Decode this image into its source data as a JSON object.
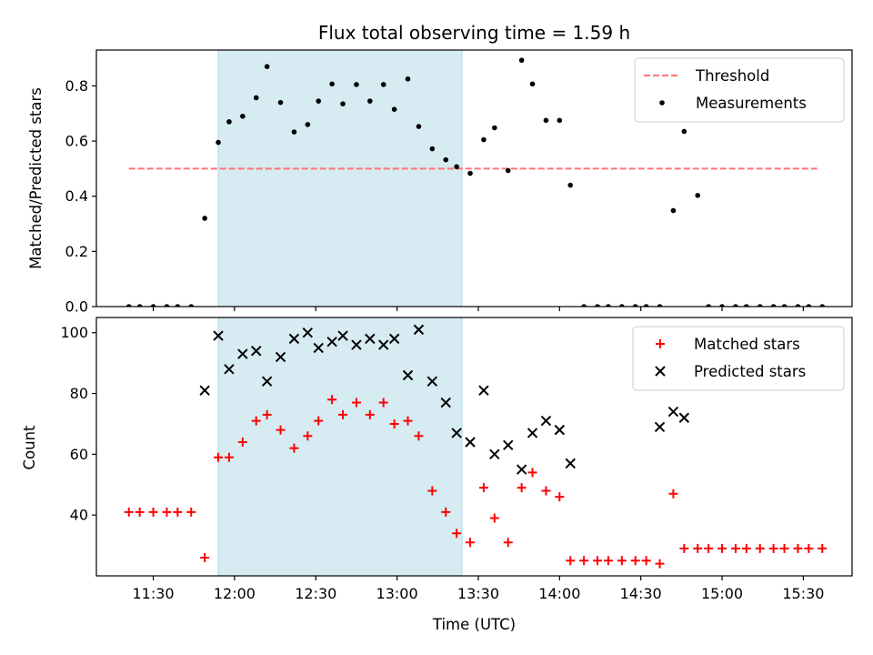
{
  "chart_data": [
    {
      "type": "scatter",
      "title": "Flux total observing time = 1.59 h",
      "ylabel": "Matched/Predicted stars",
      "xlim": [
        "11:09",
        "15:48"
      ],
      "ylim": [
        0,
        0.93
      ],
      "yticks": [
        0.0,
        0.2,
        0.4,
        0.6,
        0.8
      ],
      "yticks_labels": [
        "0.0",
        "0.2",
        "0.4",
        "0.6",
        "0.8"
      ],
      "grid": false,
      "legend_position": "upper-right",
      "shaded_span": {
        "start": "11:54",
        "end": "13:24",
        "color": "#add8e6"
      },
      "threshold": {
        "name": "Threshold",
        "value": 0.5,
        "x_start": "11:21",
        "x_end": "15:36",
        "color": "#ff7373",
        "style": "dashed"
      },
      "series": [
        {
          "name": "Measurements",
          "marker": "dot",
          "color": "#000000",
          "points": [
            [
              "11:21",
              0.0
            ],
            [
              "11:25",
              0.0
            ],
            [
              "11:30",
              0.0
            ],
            [
              "11:35",
              0.0
            ],
            [
              "11:39",
              0.0
            ],
            [
              "11:44",
              0.0
            ],
            [
              "11:49",
              0.32
            ],
            [
              "11:54",
              0.595
            ],
            [
              "11:58",
              0.67
            ],
            [
              "12:03",
              0.69
            ],
            [
              "12:08",
              0.757
            ],
            [
              "12:12",
              0.87
            ],
            [
              "12:17",
              0.74
            ],
            [
              "12:22",
              0.633
            ],
            [
              "12:27",
              0.66
            ],
            [
              "12:31",
              0.745
            ],
            [
              "12:36",
              0.807
            ],
            [
              "12:40",
              0.735
            ],
            [
              "12:45",
              0.805
            ],
            [
              "12:50",
              0.745
            ],
            [
              "12:55",
              0.805
            ],
            [
              "12:59",
              0.715
            ],
            [
              "13:04",
              0.825
            ],
            [
              "13:08",
              0.653
            ],
            [
              "13:13",
              0.572
            ],
            [
              "13:18",
              0.532
            ],
            [
              "13:22",
              0.507
            ],
            [
              "13:27",
              0.483
            ],
            [
              "13:32",
              0.605
            ],
            [
              "13:36",
              0.648
            ],
            [
              "13:41",
              0.493
            ],
            [
              "13:46",
              0.893
            ],
            [
              "13:50",
              0.807
            ],
            [
              "13:55",
              0.675
            ],
            [
              "14:00",
              0.675
            ],
            [
              "14:04",
              0.44
            ],
            [
              "14:09",
              0.0
            ],
            [
              "14:14",
              0.0
            ],
            [
              "14:18",
              0.0
            ],
            [
              "14:23",
              0.0
            ],
            [
              "14:28",
              0.0
            ],
            [
              "14:32",
              0.0
            ],
            [
              "14:37",
              0.0
            ],
            [
              "14:42",
              0.348
            ],
            [
              "14:46",
              0.635
            ],
            [
              "14:51",
              0.403
            ],
            [
              "14:55",
              0.0
            ],
            [
              "15:00",
              0.0
            ],
            [
              "15:05",
              0.0
            ],
            [
              "15:09",
              0.0
            ],
            [
              "15:14",
              0.0
            ],
            [
              "15:19",
              0.0
            ],
            [
              "15:23",
              0.0
            ],
            [
              "15:28",
              0.0
            ],
            [
              "15:32",
              0.0
            ],
            [
              "15:37",
              0.0
            ]
          ]
        }
      ]
    },
    {
      "type": "scatter",
      "xlabel": "Time (UTC)",
      "ylabel": "Count",
      "xlim": [
        "11:09",
        "15:48"
      ],
      "ylim": [
        20,
        105
      ],
      "xticks": [
        "11:30",
        "12:00",
        "12:30",
        "13:00",
        "13:30",
        "14:00",
        "14:30",
        "15:00",
        "15:30"
      ],
      "yticks": [
        40,
        60,
        80,
        100
      ],
      "grid": false,
      "legend_position": "upper-right",
      "shaded_span": {
        "start": "11:54",
        "end": "13:24",
        "color": "#add8e6"
      },
      "series": [
        {
          "name": "Matched stars",
          "marker": "plus",
          "color": "#ff0000",
          "points": [
            [
              "11:21",
              41
            ],
            [
              "11:25",
              41
            ],
            [
              "11:30",
              41
            ],
            [
              "11:35",
              41
            ],
            [
              "11:39",
              41
            ],
            [
              "11:44",
              41
            ],
            [
              "11:49",
              26
            ],
            [
              "11:54",
              59
            ],
            [
              "11:58",
              59
            ],
            [
              "12:03",
              64
            ],
            [
              "12:08",
              71
            ],
            [
              "12:12",
              73
            ],
            [
              "12:17",
              68
            ],
            [
              "12:22",
              62
            ],
            [
              "12:27",
              66
            ],
            [
              "12:31",
              71
            ],
            [
              "12:36",
              78
            ],
            [
              "12:40",
              73
            ],
            [
              "12:45",
              77
            ],
            [
              "12:50",
              73
            ],
            [
              "12:55",
              77
            ],
            [
              "12:59",
              70
            ],
            [
              "13:04",
              71
            ],
            [
              "13:08",
              66
            ],
            [
              "13:13",
              48
            ],
            [
              "13:18",
              41
            ],
            [
              "13:22",
              34
            ],
            [
              "13:27",
              31
            ],
            [
              "13:32",
              49
            ],
            [
              "13:36",
              39
            ],
            [
              "13:41",
              31
            ],
            [
              "13:46",
              49
            ],
            [
              "13:50",
              54
            ],
            [
              "13:55",
              48
            ],
            [
              "14:00",
              46
            ],
            [
              "14:04",
              25
            ],
            [
              "14:09",
              25
            ],
            [
              "14:14",
              25
            ],
            [
              "14:18",
              25
            ],
            [
              "14:23",
              25
            ],
            [
              "14:28",
              25
            ],
            [
              "14:32",
              25
            ],
            [
              "14:37",
              24
            ],
            [
              "14:42",
              47
            ],
            [
              "14:46",
              29
            ],
            [
              "14:51",
              29
            ],
            [
              "14:55",
              29
            ],
            [
              "15:00",
              29
            ],
            [
              "15:05",
              29
            ],
            [
              "15:09",
              29
            ],
            [
              "15:14",
              29
            ],
            [
              "15:19",
              29
            ],
            [
              "15:23",
              29
            ],
            [
              "15:28",
              29
            ],
            [
              "15:32",
              29
            ],
            [
              "15:37",
              29
            ]
          ]
        },
        {
          "name": "Predicted stars",
          "marker": "x",
          "color": "#000000",
          "points": [
            [
              "11:49",
              81
            ],
            [
              "11:54",
              99
            ],
            [
              "11:58",
              88
            ],
            [
              "12:03",
              93
            ],
            [
              "12:08",
              94
            ],
            [
              "12:12",
              84
            ],
            [
              "12:17",
              92
            ],
            [
              "12:22",
              98
            ],
            [
              "12:27",
              100
            ],
            [
              "12:31",
              95
            ],
            [
              "12:36",
              97
            ],
            [
              "12:40",
              99
            ],
            [
              "12:45",
              96
            ],
            [
              "12:50",
              98
            ],
            [
              "12:55",
              96
            ],
            [
              "12:59",
              98
            ],
            [
              "13:04",
              86
            ],
            [
              "13:08",
              101
            ],
            [
              "13:13",
              84
            ],
            [
              "13:18",
              77
            ],
            [
              "13:22",
              67
            ],
            [
              "13:27",
              64
            ],
            [
              "13:32",
              81
            ],
            [
              "13:36",
              60
            ],
            [
              "13:41",
              63
            ],
            [
              "13:46",
              55
            ],
            [
              "13:50",
              67
            ],
            [
              "13:55",
              71
            ],
            [
              "14:00",
              68
            ],
            [
              "14:04",
              57
            ],
            [
              "14:37",
              69
            ],
            [
              "14:42",
              74
            ],
            [
              "14:46",
              72
            ]
          ]
        }
      ]
    }
  ]
}
